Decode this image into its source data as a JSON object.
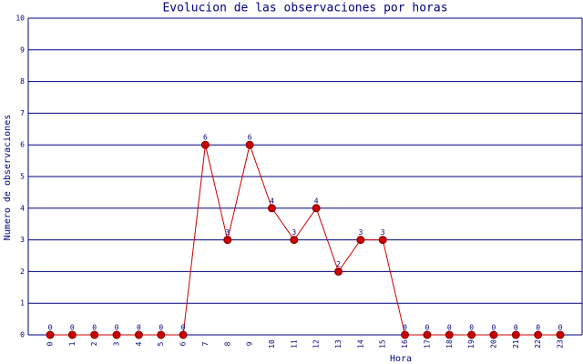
{
  "chart_data": {
    "type": "line",
    "title": "Evolucion de las observaciones por horas",
    "x_label": "Hora",
    "y_label": "Numero de observaciones",
    "categories": [
      "0",
      "1",
      "2",
      "3",
      "4",
      "5",
      "6",
      "7",
      "8",
      "9",
      "10",
      "11",
      "12",
      "13",
      "14",
      "15",
      "16",
      "17",
      "18",
      "19",
      "20",
      "21",
      "22",
      "23"
    ],
    "series": [
      {
        "name": "Observaciones",
        "color": "#cc0000",
        "values": [
          0,
          0,
          0,
          0,
          0,
          0,
          0,
          6,
          3,
          6,
          4,
          3,
          4,
          2,
          3,
          3,
          0,
          0,
          0,
          0,
          0,
          0,
          0,
          0
        ]
      }
    ],
    "ylim": [
      0,
      10
    ],
    "yticks": [
      0,
      1,
      2,
      3,
      4,
      5,
      6,
      7,
      8,
      9,
      10
    ],
    "grid": true,
    "grid_color": "#000080"
  }
}
